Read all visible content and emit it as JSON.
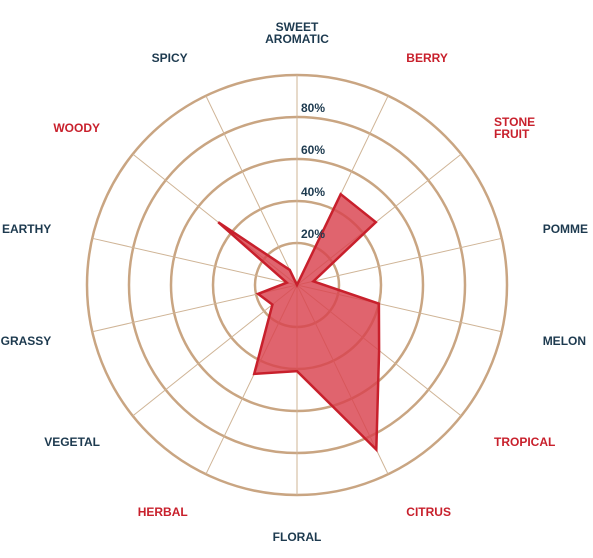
{
  "chart_data": {
    "type": "radar",
    "title": "",
    "rlim": [
      0,
      100
    ],
    "ticks": [
      "20%",
      "40%",
      "60%",
      "80%"
    ],
    "tick_values": [
      20,
      40,
      60,
      80
    ],
    "grid": true,
    "colors": {
      "ring": "#c9a582",
      "fill": "#d9424e",
      "stroke": "#c8202c",
      "dark_label": "#1d3a4f",
      "red_label": "#c8202c"
    },
    "categories": [
      {
        "lines": [
          "SWEET",
          "AROMATIC"
        ],
        "color": "dark"
      },
      {
        "lines": [
          "BERRY"
        ],
        "color": "red"
      },
      {
        "lines": [
          "STONE",
          "FRUIT"
        ],
        "color": "red"
      },
      {
        "lines": [
          "POMME"
        ],
        "color": "dark"
      },
      {
        "lines": [
          "MELON"
        ],
        "color": "dark"
      },
      {
        "lines": [
          "TROPICAL"
        ],
        "color": "red"
      },
      {
        "lines": [
          "CITRUS"
        ],
        "color": "red"
      },
      {
        "lines": [
          "FLORAL"
        ],
        "color": "dark"
      },
      {
        "lines": [
          "HERBAL"
        ],
        "color": "red"
      },
      {
        "lines": [
          "VEGETAL"
        ],
        "color": "dark"
      },
      {
        "lines": [
          "GRASSY"
        ],
        "color": "dark"
      },
      {
        "lines": [
          "EARTHY"
        ],
        "color": "dark"
      },
      {
        "lines": [
          "WOODY"
        ],
        "color": "red"
      },
      {
        "lines": [
          "SPICY"
        ],
        "color": "dark"
      }
    ],
    "series": [
      {
        "values": [
          0,
          48,
          48,
          8,
          40,
          50,
          87,
          41,
          47,
          15,
          19,
          5,
          48,
          8
        ]
      }
    ]
  }
}
